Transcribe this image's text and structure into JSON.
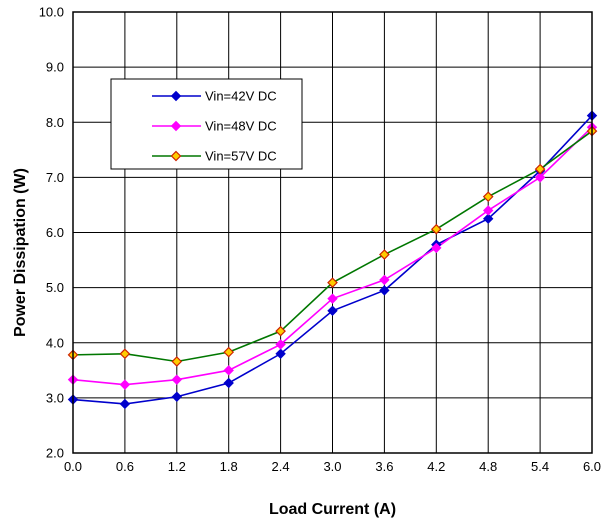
{
  "chart_data": {
    "type": "line",
    "title": "",
    "xlabel": "Load Current (A)",
    "ylabel": "Power Dissipation (W)",
    "xlim": [
      0.0,
      6.0
    ],
    "ylim": [
      2.0,
      10.0
    ],
    "x_ticks": [
      "0.0",
      "0.6",
      "1.2",
      "1.8",
      "2.4",
      "3.0",
      "3.6",
      "4.2",
      "4.8",
      "5.4",
      "6.0"
    ],
    "y_ticks": [
      "2.0",
      "3.0",
      "4.0",
      "5.0",
      "6.0",
      "7.0",
      "8.0",
      "9.0",
      "10.0"
    ],
    "grid": true,
    "legend_position": "top-left",
    "x": [
      0.0,
      0.6,
      1.2,
      1.8,
      2.4,
      3.0,
      3.6,
      4.2,
      4.8,
      5.4,
      6.0
    ],
    "series": [
      {
        "name": "Vin=42V DC",
        "color": "#0000cc",
        "marker": "diamond",
        "marker_fill": "#0000cc",
        "values": [
          2.97,
          2.89,
          3.02,
          3.27,
          3.8,
          4.58,
          4.95,
          5.78,
          6.25,
          7.12,
          8.12
        ]
      },
      {
        "name": "Vin=48V DC",
        "color": "#ff00ff",
        "marker": "diamond",
        "marker_fill": "#ff00ff",
        "values": [
          3.33,
          3.24,
          3.33,
          3.5,
          3.97,
          4.8,
          5.14,
          5.72,
          6.4,
          7.0,
          7.91
        ]
      },
      {
        "name": "Vin=57V DC",
        "color": "#007700",
        "marker": "diamond",
        "marker_fill": "#ffcc00",
        "marker_stroke": "#cc2200",
        "values": [
          3.78,
          3.8,
          3.66,
          3.83,
          4.21,
          5.09,
          5.6,
          6.06,
          6.65,
          7.15,
          7.84
        ]
      }
    ]
  }
}
